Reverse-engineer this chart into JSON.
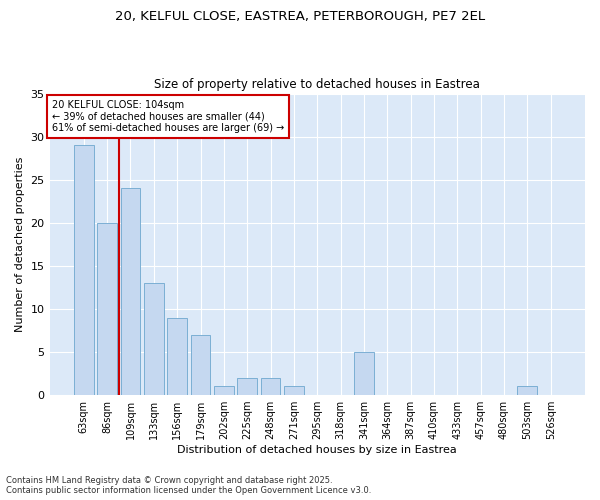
{
  "title_line1": "20, KELFUL CLOSE, EASTREA, PETERBOROUGH, PE7 2EL",
  "title_line2": "Size of property relative to detached houses in Eastrea",
  "xlabel": "Distribution of detached houses by size in Eastrea",
  "ylabel": "Number of detached properties",
  "footer_line1": "Contains HM Land Registry data © Crown copyright and database right 2025.",
  "footer_line2": "Contains public sector information licensed under the Open Government Licence v3.0.",
  "categories": [
    "63sqm",
    "86sqm",
    "109sqm",
    "133sqm",
    "156sqm",
    "179sqm",
    "202sqm",
    "225sqm",
    "248sqm",
    "271sqm",
    "295sqm",
    "318sqm",
    "341sqm",
    "364sqm",
    "387sqm",
    "410sqm",
    "433sqm",
    "457sqm",
    "480sqm",
    "503sqm",
    "526sqm"
  ],
  "values": [
    29,
    20,
    24,
    13,
    9,
    7,
    1,
    2,
    2,
    1,
    0,
    0,
    5,
    0,
    0,
    0,
    0,
    0,
    0,
    1,
    0
  ],
  "bar_color": "#c5d8f0",
  "bar_edge_color": "#7bafd4",
  "background_color": "#dce9f8",
  "grid_color": "#ffffff",
  "fig_background": "#ffffff",
  "vline_x": 1.5,
  "vline_color": "#cc0000",
  "annotation_text": "20 KELFUL CLOSE: 104sqm\n← 39% of detached houses are smaller (44)\n61% of semi-detached houses are larger (69) →",
  "annotation_box_color": "#cc0000",
  "ylim": [
    0,
    35
  ],
  "yticks": [
    0,
    5,
    10,
    15,
    20,
    25,
    30,
    35
  ]
}
